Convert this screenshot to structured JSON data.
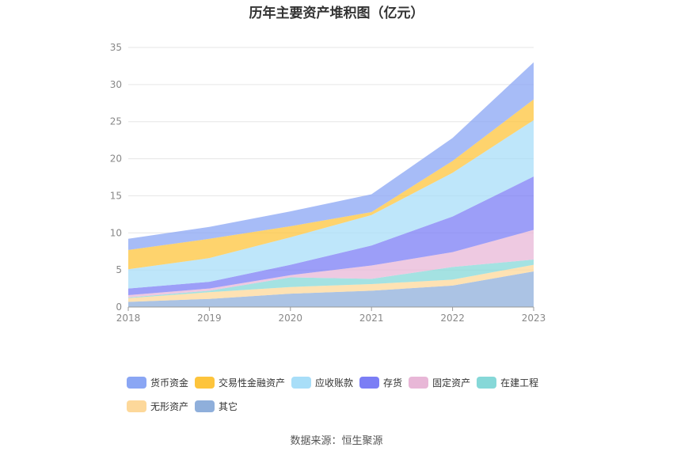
{
  "chart_data": {
    "type": "area",
    "stacked": true,
    "title": "历年主要资产堆积图（亿元）",
    "x": [
      "2018",
      "2019",
      "2020",
      "2021",
      "2022",
      "2023"
    ],
    "ylim": [
      0,
      35
    ],
    "yticks": [
      0,
      5,
      10,
      15,
      20,
      25,
      30,
      35
    ],
    "grid": true,
    "legend_position": "bottom",
    "series": [
      {
        "name": "其它",
        "color": "#8fafdb",
        "values": [
          0.7,
          1.1,
          1.8,
          2.2,
          2.9,
          4.8
        ]
      },
      {
        "name": "无形资产",
        "color": "#fdd89a",
        "values": [
          0.5,
          0.9,
          0.9,
          0.9,
          0.8,
          0.9
        ]
      },
      {
        "name": "在建工程",
        "color": "#86d8d8",
        "values": [
          0.1,
          0.2,
          1.3,
          0.7,
          1.7,
          0.7
        ]
      },
      {
        "name": "固定资产",
        "color": "#e8b7d7",
        "values": [
          0.3,
          0.3,
          0.3,
          1.8,
          2.0,
          4.0
        ]
      },
      {
        "name": "存货",
        "color": "#7b7ef5",
        "values": [
          0.9,
          0.9,
          1.4,
          2.7,
          4.8,
          7.2
        ]
      },
      {
        "name": "应收账款",
        "color": "#a8def8",
        "values": [
          2.6,
          3.2,
          3.7,
          4.1,
          5.9,
          7.6
        ]
      },
      {
        "name": "交易性金融资产",
        "color": "#fdc43c",
        "values": [
          2.6,
          2.6,
          1.5,
          0.4,
          1.6,
          2.8
        ]
      },
      {
        "name": "货币资金",
        "color": "#8aa6f4",
        "values": [
          1.5,
          1.6,
          2.0,
          2.4,
          3.1,
          5.0
        ]
      }
    ],
    "legend_rows": [
      [
        "货币资金",
        "交易性金融资产",
        "应收账款",
        "存货",
        "固定资产",
        "在建工程"
      ],
      [
        "无形资产",
        "其它"
      ]
    ]
  },
  "source_text": "数据来源：恒生聚源"
}
